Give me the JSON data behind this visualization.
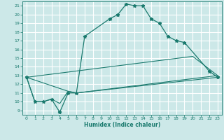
{
  "xlabel": "Humidex (Indice chaleur)",
  "bg_color": "#cce8e8",
  "grid_color": "#ffffff",
  "line_color": "#1a7a6e",
  "xlim": [
    -0.5,
    23.5
  ],
  "ylim": [
    8.5,
    21.5
  ],
  "xticks": [
    0,
    1,
    2,
    3,
    4,
    5,
    6,
    7,
    8,
    9,
    10,
    11,
    12,
    13,
    14,
    15,
    16,
    17,
    18,
    19,
    20,
    21,
    22,
    23
  ],
  "yticks": [
    9,
    10,
    11,
    12,
    13,
    14,
    15,
    16,
    17,
    18,
    19,
    20,
    21
  ],
  "lines": [
    {
      "x": [
        0,
        1,
        2,
        3,
        4,
        5,
        6,
        7,
        10,
        11,
        12,
        13,
        14,
        15,
        16,
        17,
        18,
        19,
        22,
        23
      ],
      "y": [
        12.8,
        10.0,
        10.0,
        10.3,
        8.8,
        11.0,
        11.0,
        17.5,
        19.5,
        20.0,
        21.2,
        21.0,
        21.0,
        19.5,
        19.0,
        17.5,
        17.0,
        16.8,
        13.5,
        12.8
      ],
      "has_marker": true
    },
    {
      "x": [
        0,
        1,
        2,
        3,
        4,
        5,
        6,
        23
      ],
      "y": [
        12.8,
        10.0,
        10.0,
        10.3,
        9.8,
        11.2,
        11.0,
        12.8
      ],
      "has_marker": false
    },
    {
      "x": [
        0,
        5,
        6,
        23
      ],
      "y": [
        12.8,
        11.2,
        11.0,
        13.0
      ],
      "has_marker": false
    },
    {
      "x": [
        0,
        20,
        23
      ],
      "y": [
        12.8,
        15.2,
        13.0
      ],
      "has_marker": false
    }
  ]
}
